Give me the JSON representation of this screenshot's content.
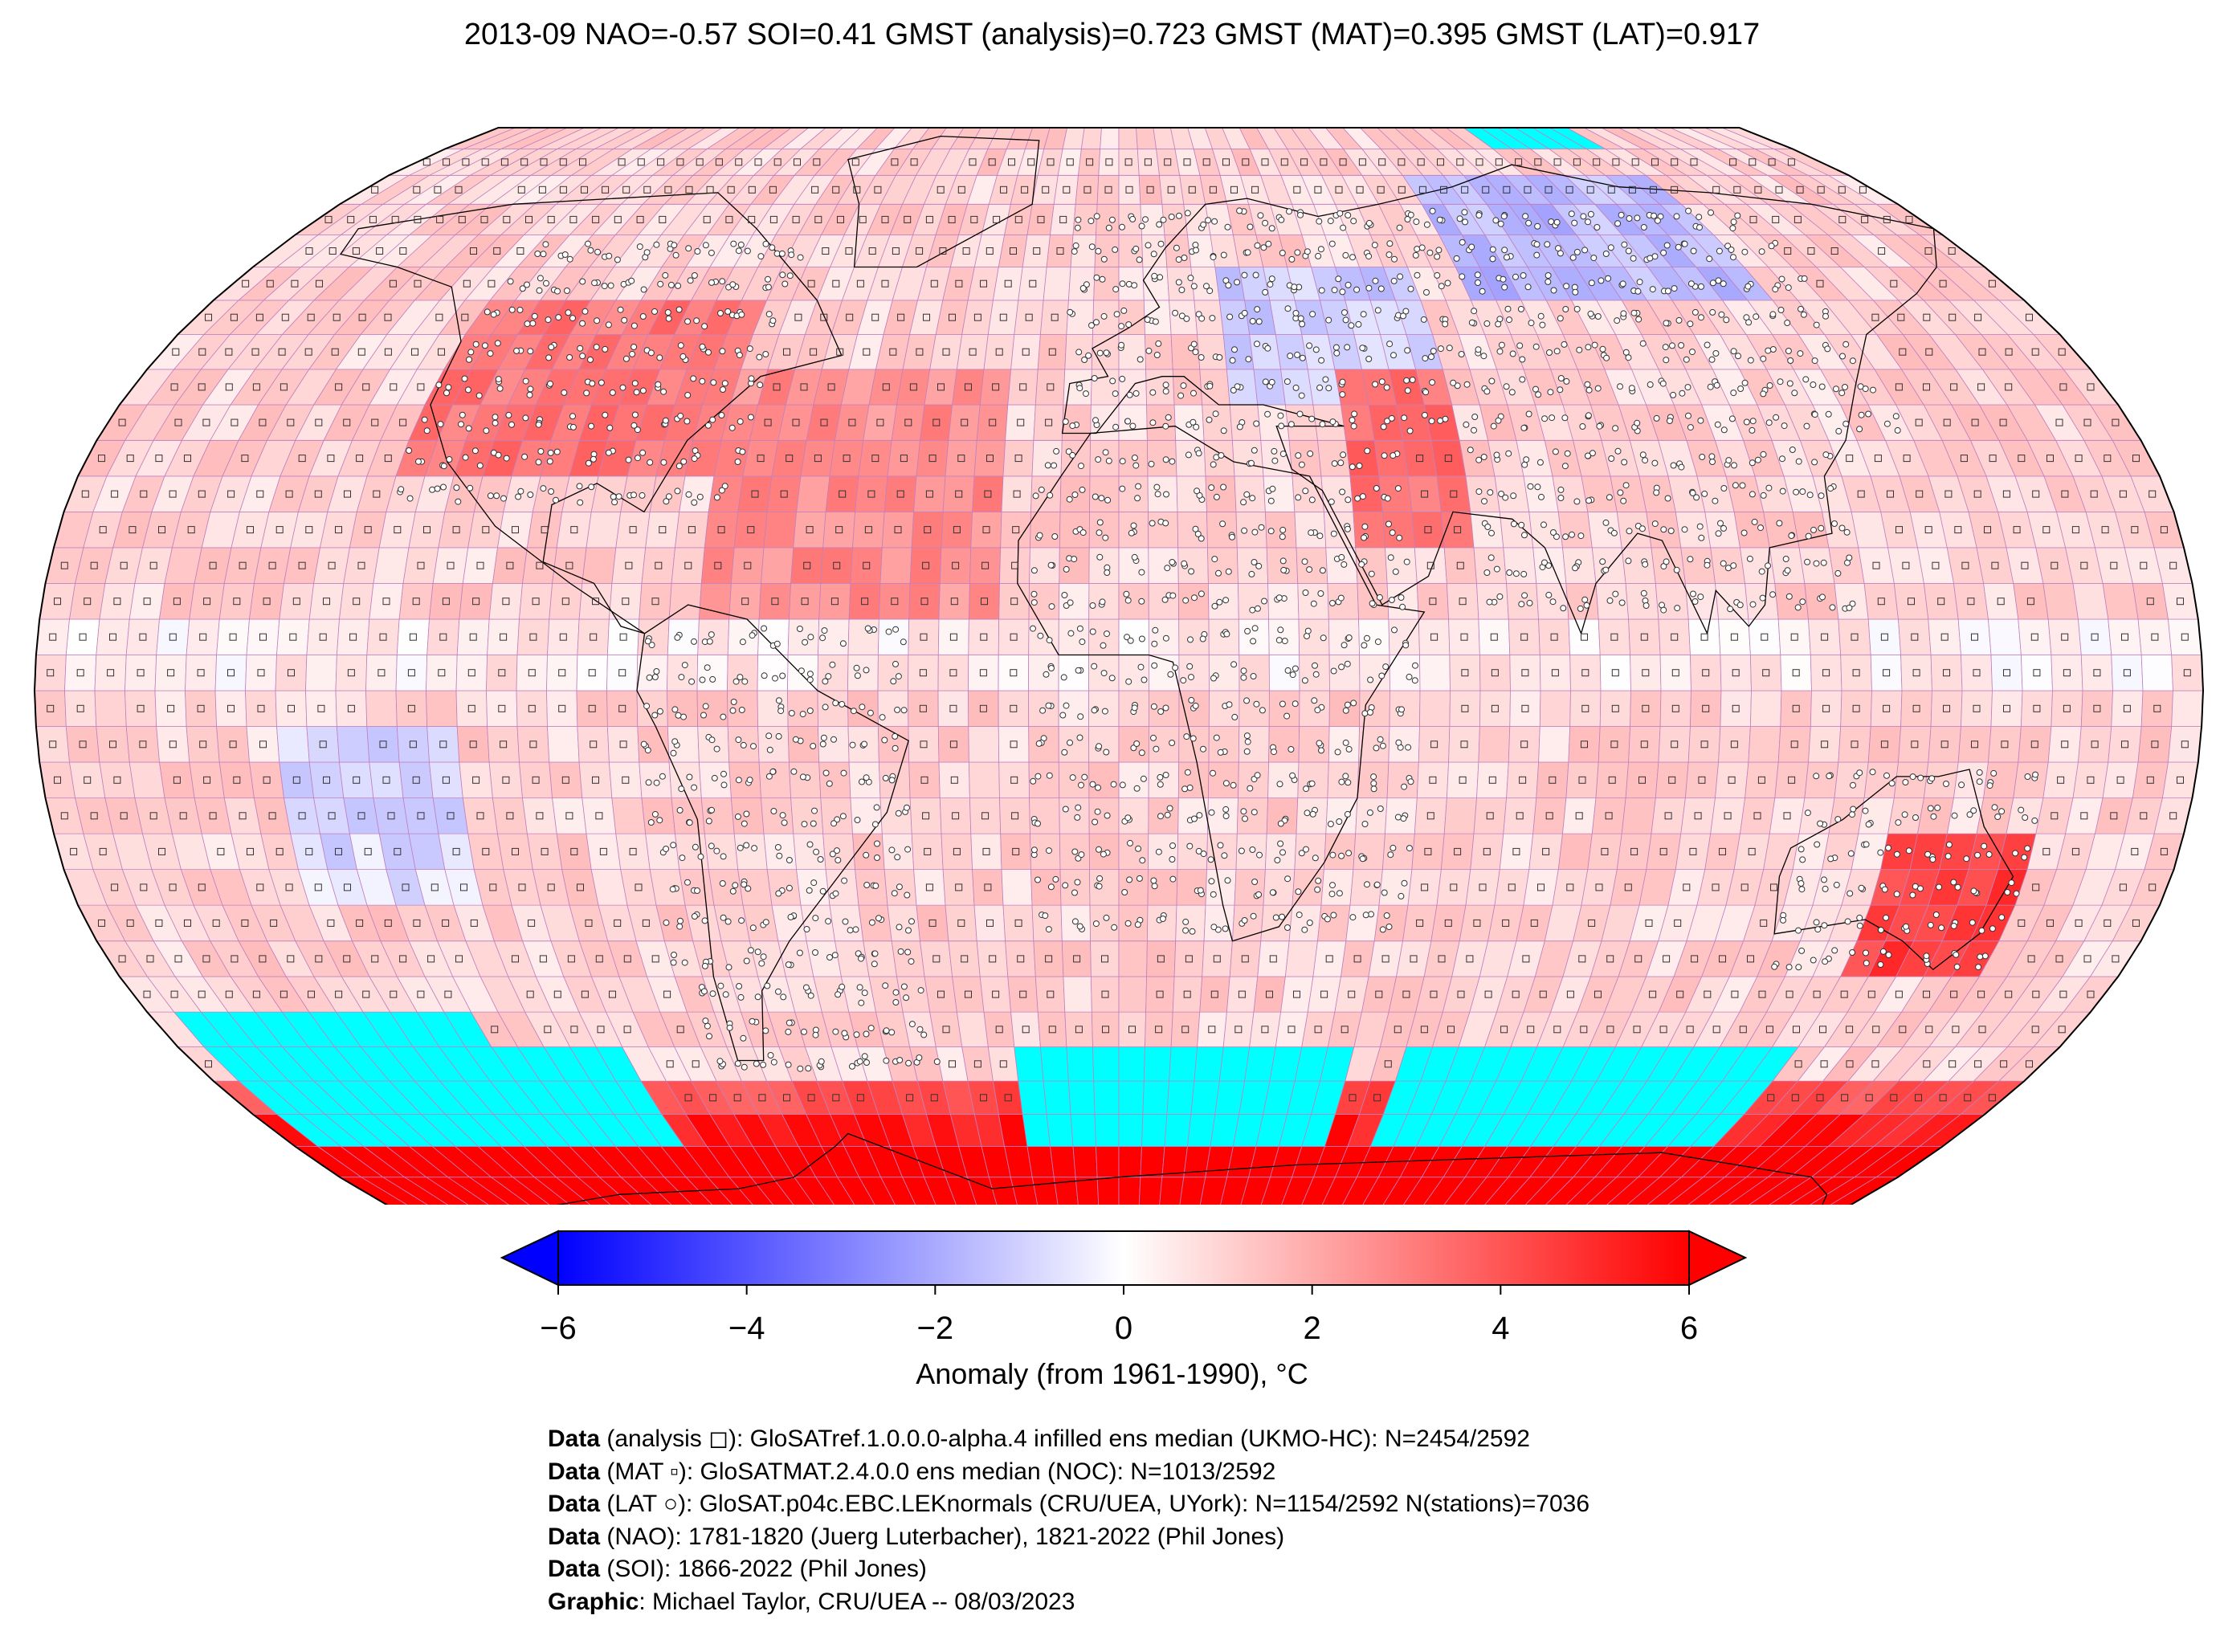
{
  "title": "2013-09 NAO=-0.57 SOI=0.41 GMST (analysis)=0.723 GMST (MAT)=0.395 GMST (LAT)=0.917",
  "projection": "Robinson",
  "colors": {
    "min": "#0000ff",
    "zero": "#ffffff",
    "max": "#ff0000",
    "no_data": "#00ffff",
    "grid": "#c080c0",
    "land_outline": "#000000"
  },
  "colorbar": {
    "label": "Anomaly (from 1961-1990), °C",
    "range": [
      -6,
      6
    ],
    "ticks": [
      "−6",
      "−4",
      "−2",
      "0",
      "2",
      "4",
      "6"
    ],
    "extend": "both"
  },
  "credits": [
    {
      "key": "Data",
      "text": " (analysis ◻): GloSATref.1.0.0.0-alpha.4 infilled ens median (UKMO-HC): N=2454/2592"
    },
    {
      "key": "Data",
      "text": " (MAT ▫): GloSATMAT.2.4.0.0 ens median (NOC): N=1013/2592"
    },
    {
      "key": "Data",
      "text": " (LAT ○): GloSAT.p04c.EBC.LEKnormals (CRU/UEA, UYork): N=1154/2592 N(stations)=7036"
    },
    {
      "key": "Data",
      "text": " (NAO): 1781-1820 (Juerg Luterbacher), 1821-2022 (Phil Jones)"
    },
    {
      "key": "Data",
      "text": " (SOI): 1866-2022 (Phil Jones)"
    },
    {
      "key": "Graphic",
      "text": ": Michael Taylor, CRU/UEA -- 08/03/2023"
    }
  ]
}
